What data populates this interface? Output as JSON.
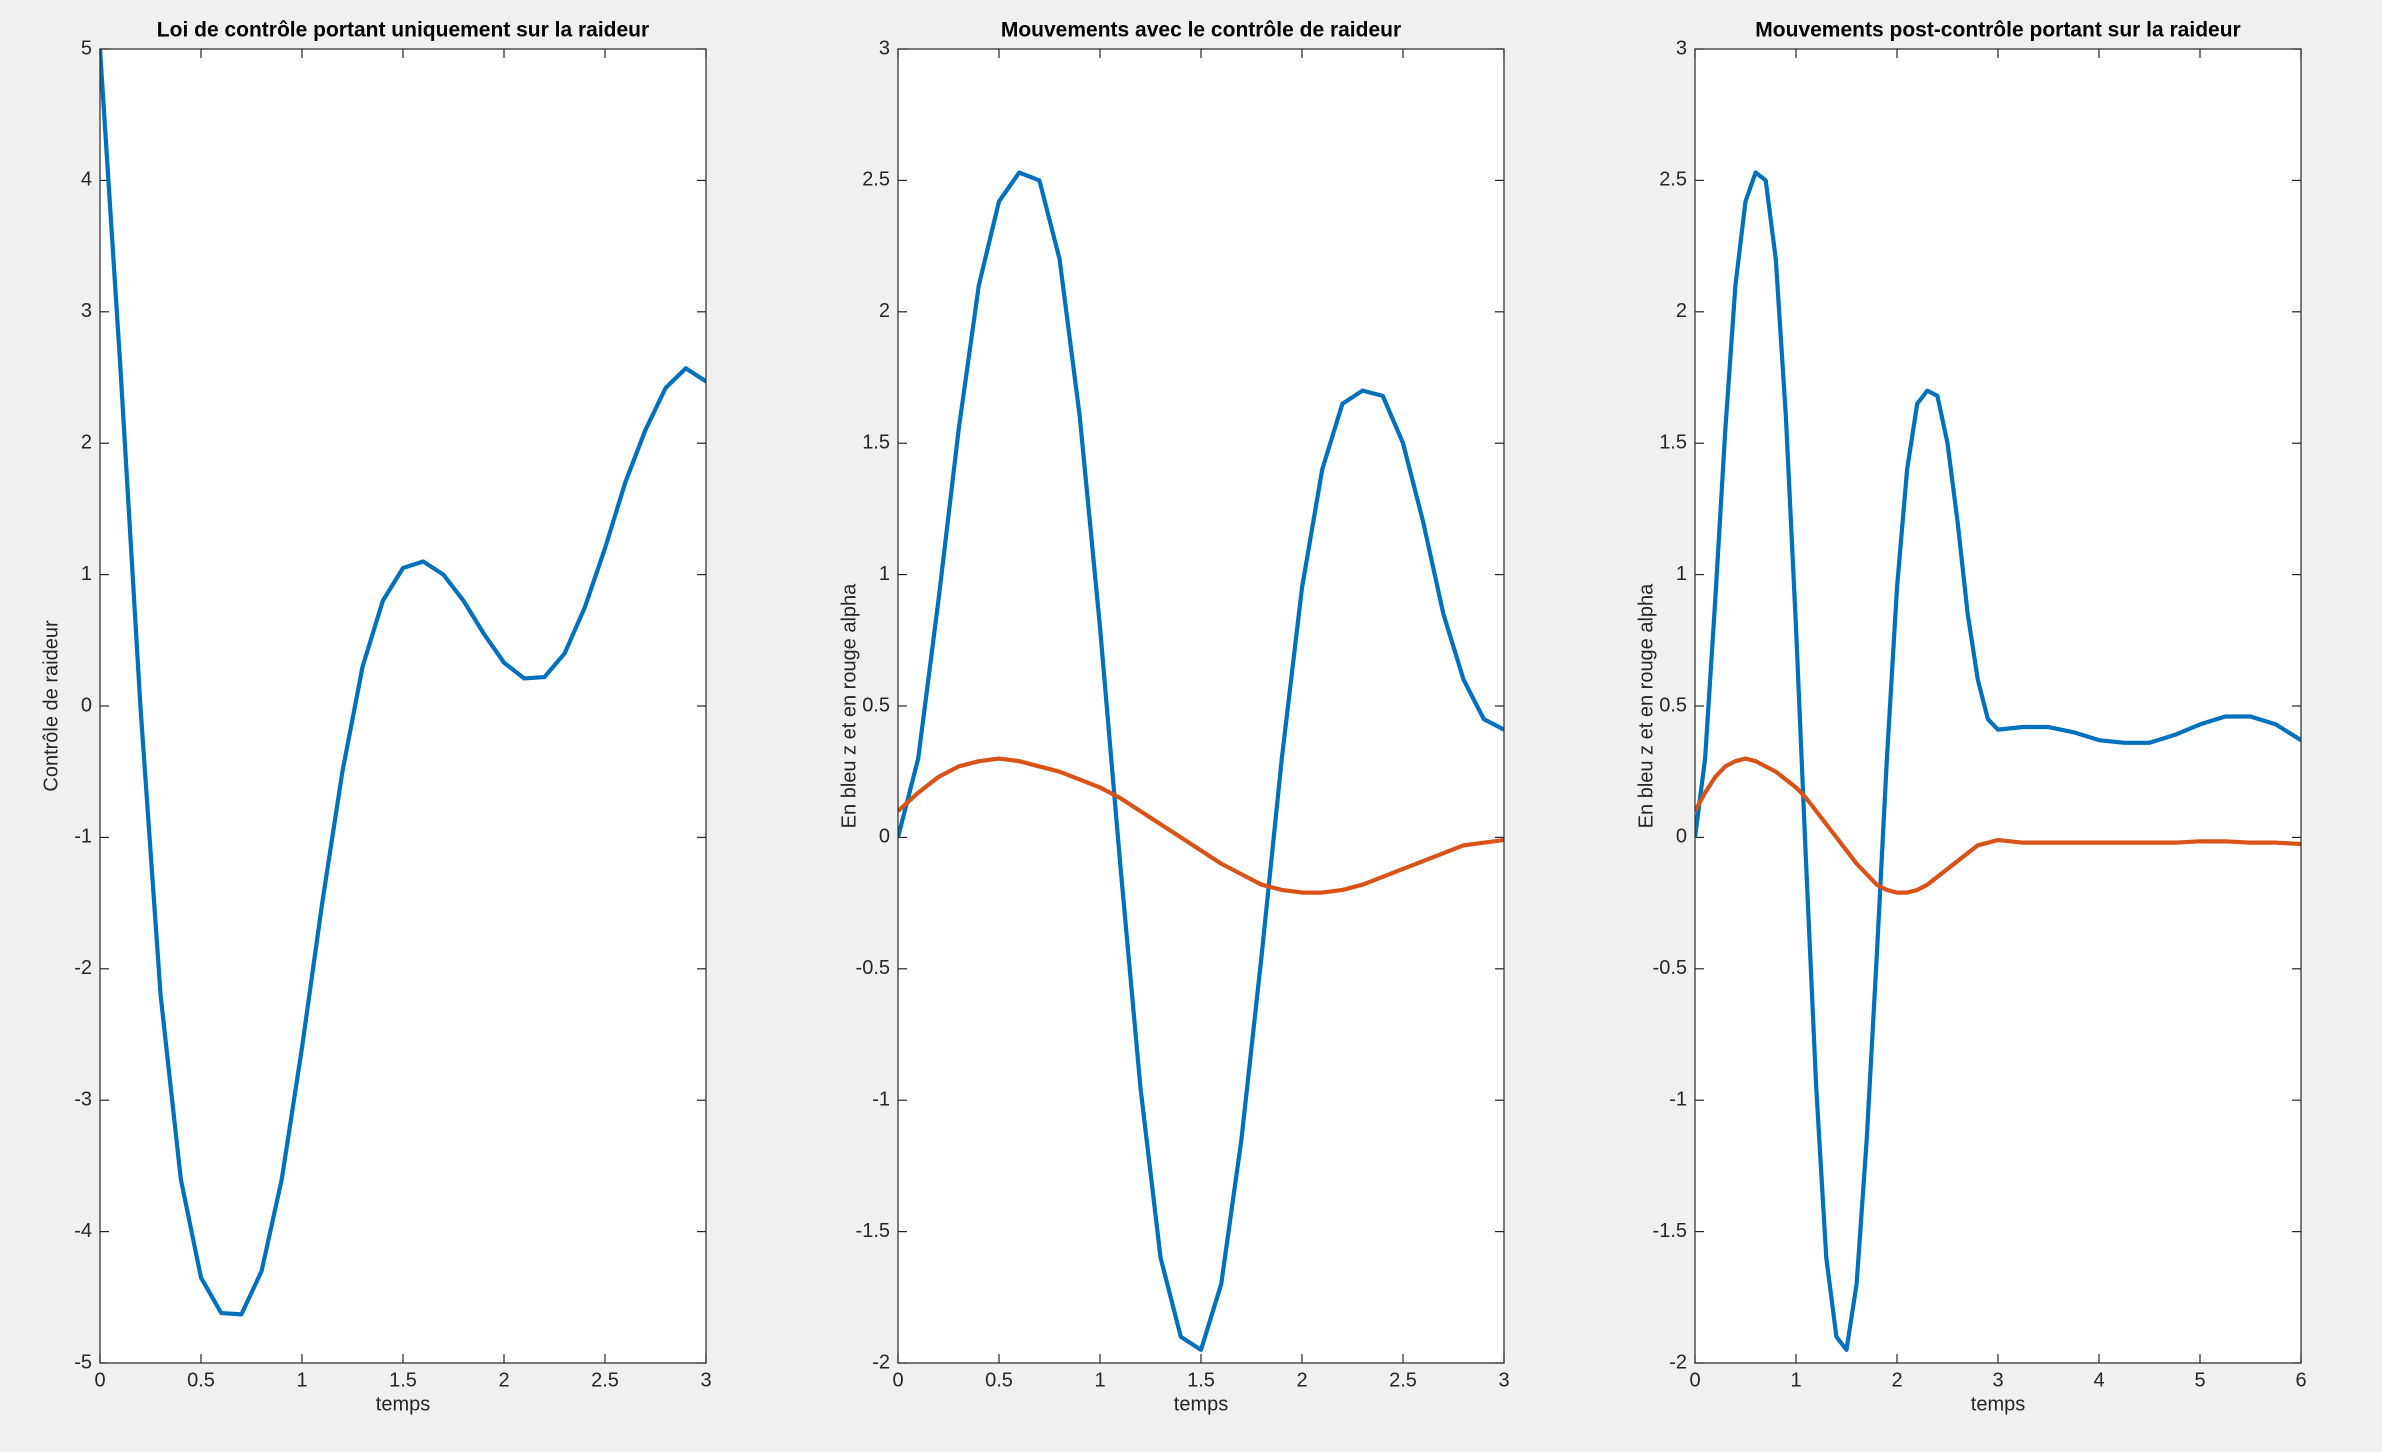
{
  "chart_data": [
    {
      "type": "line",
      "title": "Loi de contrôle portant uniquement sur la raideur",
      "xlabel": "temps",
      "ylabel": "Contrôle de raideur",
      "x": [
        0,
        0.1,
        0.2,
        0.3,
        0.4,
        0.5,
        0.6,
        0.7,
        0.8,
        0.9,
        1.0,
        1.1,
        1.2,
        1.3,
        1.4,
        1.5,
        1.6,
        1.7,
        1.8,
        1.9,
        2.0,
        2.1,
        2.2,
        2.3,
        2.4,
        2.5,
        2.6,
        2.7,
        2.8,
        2.9,
        3.0
      ],
      "series": [
        {
          "color": "#0072bd",
          "values": [
            5.0,
            2.6,
            0.0,
            -2.2,
            -3.6,
            -4.35,
            -4.62,
            -4.63,
            -4.3,
            -3.6,
            -2.6,
            -1.5,
            -0.5,
            0.3,
            0.8,
            1.05,
            1.1,
            1.0,
            0.8,
            0.55,
            0.33,
            0.21,
            0.22,
            0.4,
            0.75,
            1.2,
            1.7,
            2.1,
            2.42,
            2.57,
            2.47
          ]
        }
      ],
      "xlim": [
        0,
        3
      ],
      "ylim": [
        -5,
        5
      ],
      "xticks": [
        0,
        0.5,
        1,
        1.5,
        2,
        2.5,
        3
      ],
      "yticks": [
        -5,
        -4,
        -3,
        -2,
        -1,
        0,
        1,
        2,
        3,
        4,
        5
      ]
    },
    {
      "type": "line",
      "title": "Mouvements avec le contrôle de raideur",
      "xlabel": "temps",
      "ylabel": "En bleu z et en rouge alpha",
      "x": [
        0,
        0.1,
        0.2,
        0.3,
        0.4,
        0.5,
        0.6,
        0.7,
        0.8,
        0.9,
        1.0,
        1.1,
        1.2,
        1.3,
        1.4,
        1.5,
        1.6,
        1.7,
        1.8,
        1.9,
        2.0,
        2.1,
        2.2,
        2.3,
        2.4,
        2.5,
        2.6,
        2.7,
        2.8,
        2.9,
        3.0
      ],
      "series": [
        {
          "color": "#0072bd",
          "values": [
            0,
            0.3,
            0.9,
            1.55,
            2.1,
            2.42,
            2.53,
            2.5,
            2.2,
            1.6,
            0.8,
            -0.1,
            -0.95,
            -1.6,
            -1.9,
            -1.95,
            -1.7,
            -1.15,
            -0.45,
            0.3,
            0.95,
            1.4,
            1.65,
            1.7,
            1.68,
            1.5,
            1.2,
            0.85,
            0.6,
            0.45,
            0.41
          ]
        },
        {
          "color": "#d95319",
          "values": [
            0.1,
            0.17,
            0.23,
            0.27,
            0.29,
            0.3,
            0.29,
            0.27,
            0.25,
            0.22,
            0.19,
            0.15,
            0.1,
            0.05,
            0.0,
            -0.05,
            -0.1,
            -0.14,
            -0.18,
            -0.2,
            -0.21,
            -0.21,
            -0.2,
            -0.18,
            -0.15,
            -0.12,
            -0.09,
            -0.06,
            -0.03,
            -0.02,
            -0.01
          ]
        }
      ],
      "xlim": [
        0,
        3
      ],
      "ylim": [
        -2,
        3
      ],
      "xticks": [
        0,
        0.5,
        1,
        1.5,
        2,
        2.5,
        3
      ],
      "yticks": [
        -2,
        -1.5,
        -1,
        -0.5,
        0,
        0.5,
        1,
        1.5,
        2,
        2.5,
        3
      ]
    },
    {
      "type": "line",
      "title": "Mouvements post-contrôle portant sur la raideur",
      "xlabel": "temps",
      "ylabel": "En bleu z et en rouge alpha",
      "x": [
        0,
        0.1,
        0.2,
        0.3,
        0.4,
        0.5,
        0.6,
        0.7,
        0.8,
        0.9,
        1.0,
        1.1,
        1.2,
        1.3,
        1.4,
        1.5,
        1.6,
        1.7,
        1.8,
        1.9,
        2.0,
        2.1,
        2.2,
        2.3,
        2.4,
        2.5,
        2.6,
        2.7,
        2.8,
        2.9,
        3.0,
        3.25,
        3.5,
        3.75,
        4.0,
        4.25,
        4.5,
        4.75,
        5.0,
        5.25,
        5.5,
        5.75,
        6.0
      ],
      "series": [
        {
          "color": "#0072bd",
          "values": [
            0,
            0.3,
            0.9,
            1.55,
            2.1,
            2.42,
            2.53,
            2.5,
            2.2,
            1.6,
            0.8,
            -0.1,
            -0.95,
            -1.6,
            -1.9,
            -1.95,
            -1.7,
            -1.15,
            -0.45,
            0.3,
            0.95,
            1.4,
            1.65,
            1.7,
            1.68,
            1.5,
            1.2,
            0.85,
            0.6,
            0.45,
            0.41,
            0.42,
            0.42,
            0.4,
            0.37,
            0.36,
            0.36,
            0.39,
            0.43,
            0.46,
            0.46,
            0.43,
            0.37
          ]
        },
        {
          "color": "#d95319",
          "values": [
            0.1,
            0.17,
            0.23,
            0.27,
            0.29,
            0.3,
            0.29,
            0.27,
            0.25,
            0.22,
            0.19,
            0.15,
            0.1,
            0.05,
            0.0,
            -0.05,
            -0.1,
            -0.14,
            -0.18,
            -0.2,
            -0.21,
            -0.21,
            -0.2,
            -0.18,
            -0.15,
            -0.12,
            -0.09,
            -0.06,
            -0.03,
            -0.02,
            -0.01,
            -0.02,
            -0.02,
            -0.02,
            -0.02,
            -0.02,
            -0.02,
            -0.02,
            -0.015,
            -0.015,
            -0.02,
            -0.02,
            -0.025
          ]
        }
      ],
      "xlim": [
        0,
        6
      ],
      "ylim": [
        -2,
        3
      ],
      "xticks": [
        0,
        1,
        2,
        3,
        4,
        5,
        6
      ],
      "yticks": [
        -2,
        -1.5,
        -1,
        -0.5,
        0,
        0.5,
        1,
        1.5,
        2,
        2.5,
        3
      ]
    }
  ]
}
